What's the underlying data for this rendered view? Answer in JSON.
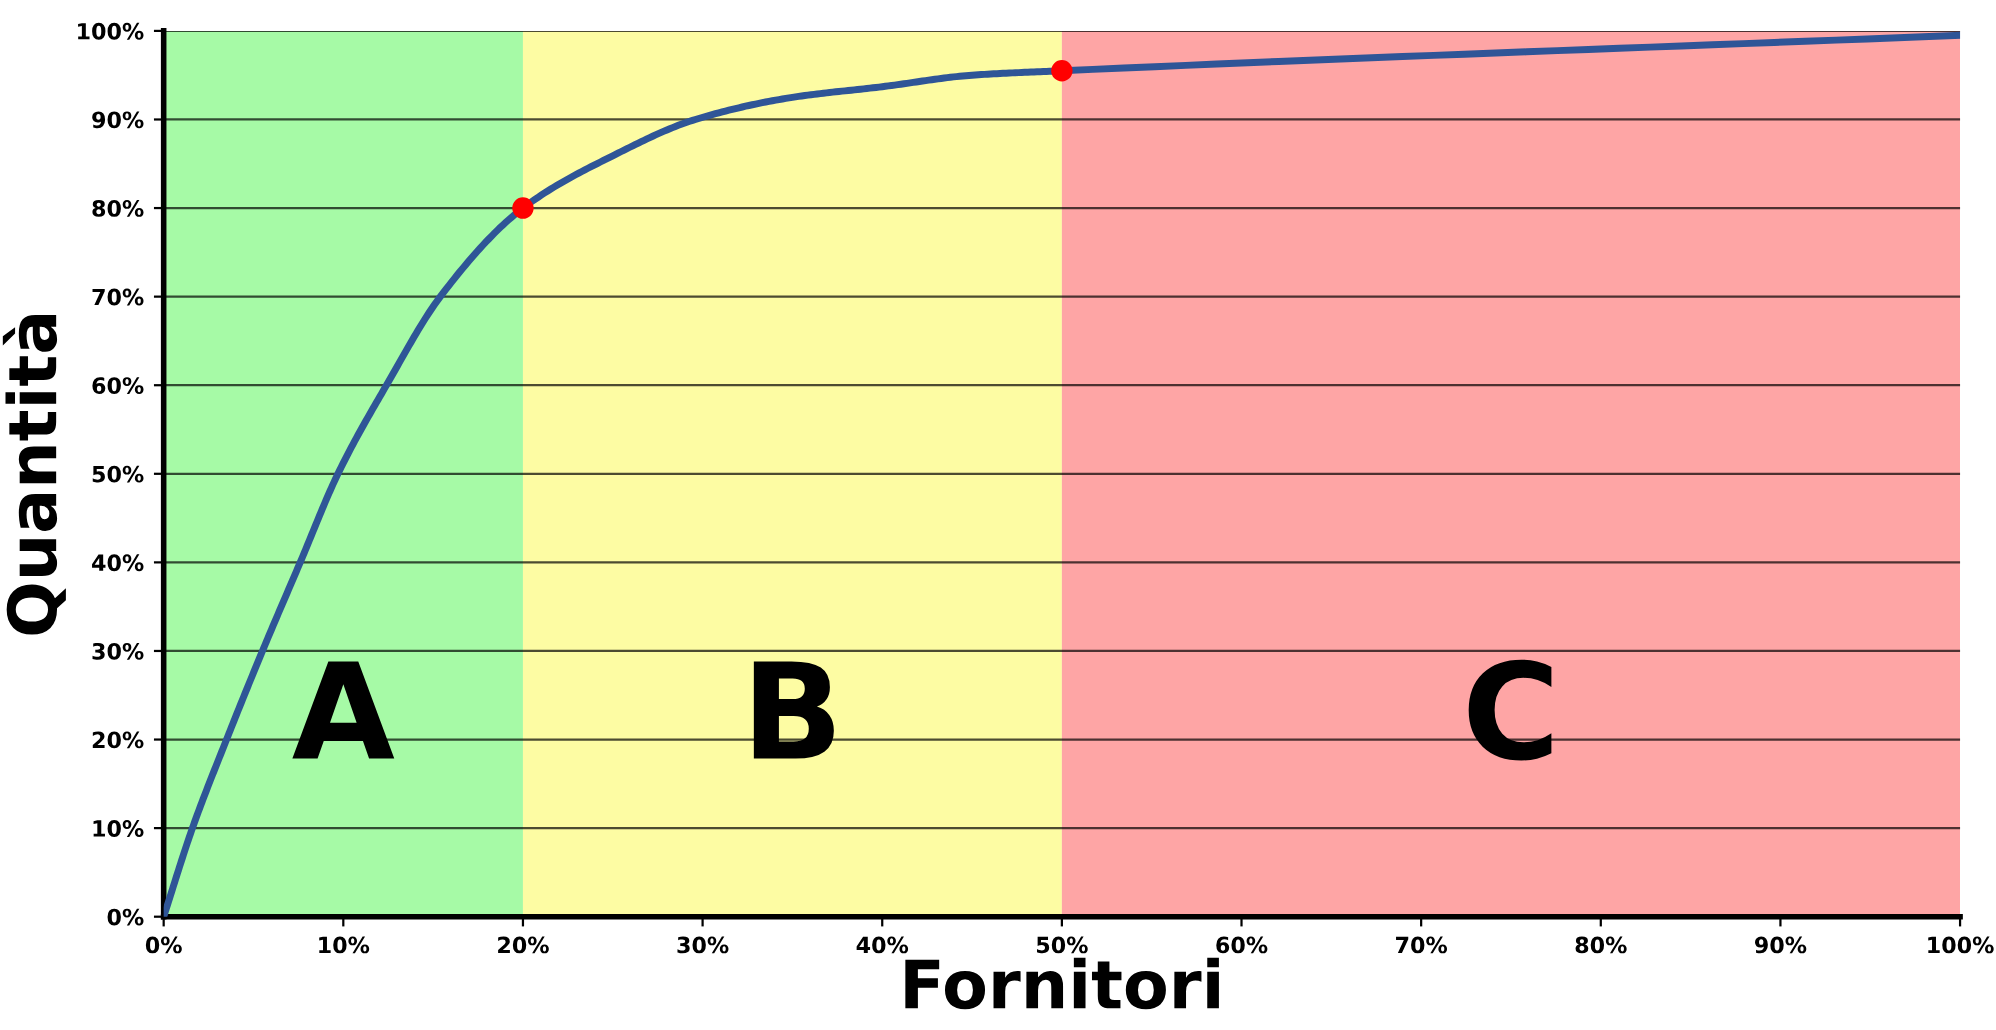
{
  "chart_data": {
    "type": "line",
    "xlabel": "Fornitori",
    "ylabel": "Quantità",
    "xlim": [
      0,
      100
    ],
    "ylim": [
      0,
      100
    ],
    "xticks": [
      {
        "value": 0,
        "label": "0%"
      },
      {
        "value": 10,
        "label": "10%"
      },
      {
        "value": 20,
        "label": "20%"
      },
      {
        "value": 30,
        "label": "30%"
      },
      {
        "value": 40,
        "label": "40%"
      },
      {
        "value": 50,
        "label": "50%"
      },
      {
        "value": 60,
        "label": "60%"
      },
      {
        "value": 70,
        "label": "70%"
      },
      {
        "value": 80,
        "label": "80%"
      },
      {
        "value": 90,
        "label": "90%"
      },
      {
        "value": 100,
        "label": "100%"
      }
    ],
    "yticks": [
      {
        "value": 0,
        "label": "0%"
      },
      {
        "value": 10,
        "label": "10%"
      },
      {
        "value": 20,
        "label": "20%"
      },
      {
        "value": 30,
        "label": "30%"
      },
      {
        "value": 40,
        "label": "40%"
      },
      {
        "value": 50,
        "label": "50%"
      },
      {
        "value": 60,
        "label": "60%"
      },
      {
        "value": 70,
        "label": "70%"
      },
      {
        "value": 80,
        "label": "80%"
      },
      {
        "value": 90,
        "label": "90%"
      },
      {
        "value": 100,
        "label": "100%"
      }
    ],
    "grid": "y",
    "series": [
      {
        "color": "#2f5597",
        "x": [
          0,
          1.6,
          3.5,
          5.5,
          7.6,
          9.7,
          12.4,
          15.4,
          20,
          25,
          29.6,
          35,
          40,
          45,
          50,
          100
        ],
        "values": [
          0,
          10,
          20,
          30,
          40,
          50,
          60,
          70,
          80,
          85.9,
          90,
          92.5,
          93.7,
          95.0,
          95.5,
          99.5
        ]
      },
      {
        "type": "scatter",
        "color": "#ff0000",
        "marker": "circle",
        "x": [
          20,
          50
        ],
        "values": [
          80,
          95.5
        ]
      }
    ],
    "bands": [
      {
        "axis": "x",
        "from": 0,
        "to": 20,
        "label": "A",
        "color": "#a6faa6"
      },
      {
        "axis": "x",
        "from": 20,
        "to": 50,
        "label": "B",
        "color": "#fdfca3"
      },
      {
        "axis": "x",
        "from": 50,
        "to": 100,
        "label": "C",
        "color": "#fea5a5"
      }
    ]
  }
}
